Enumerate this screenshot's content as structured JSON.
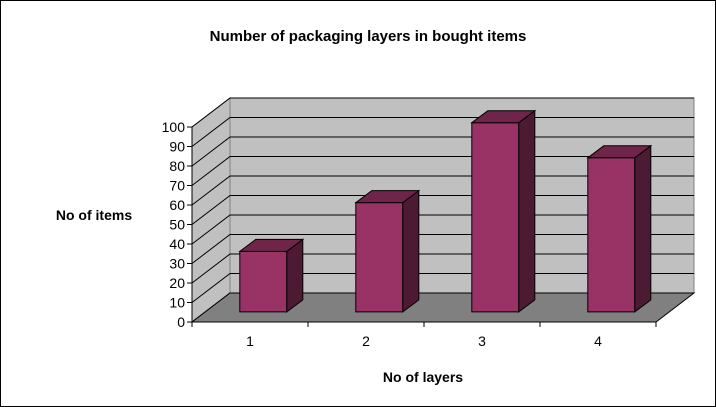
{
  "chart_data": {
    "type": "bar",
    "title": "Number of packaging layers in bought items",
    "xlabel": "No of layers",
    "ylabel": "No of items",
    "categories": [
      "1",
      "2",
      "3",
      "4"
    ],
    "values": [
      31,
      56,
      97,
      79
    ],
    "ylim": [
      0,
      100
    ],
    "yticks": [
      0,
      10,
      20,
      30,
      40,
      50,
      60,
      70,
      80,
      90,
      100
    ],
    "grid": true,
    "legend": "none",
    "style": "3d-column",
    "colors": {
      "bar_front": "#993366",
      "bar_top": "#6f2449",
      "bar_side": "#4d1a33",
      "wall": "#c0c0c0",
      "floor": "#808080"
    }
  }
}
